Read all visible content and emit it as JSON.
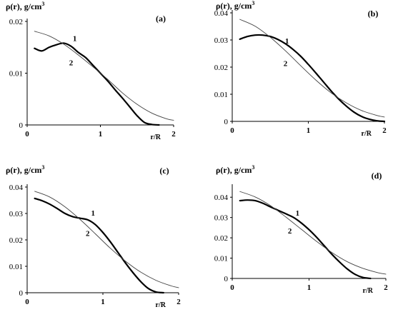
{
  "chart_data": [
    {
      "type": "line",
      "panel_label": "(a)",
      "ylabel": "ρ(r), g/cm",
      "ylabel_sup": "3",
      "xlabel": "r/R",
      "xlim": [
        0,
        2
      ],
      "ylim": [
        0,
        0.02
      ],
      "xticks": [
        0,
        1,
        2
      ],
      "yticks": [
        0,
        0.01,
        0.02
      ],
      "ytick_labels": [
        "0",
        "0.01",
        "0.02"
      ],
      "series": [
        {
          "name": "1",
          "style": "thick",
          "x": [
            0.1,
            0.2,
            0.3,
            0.4,
            0.5,
            0.6,
            0.7,
            0.8,
            0.9,
            1.0,
            1.1,
            1.2,
            1.3,
            1.4,
            1.5,
            1.6,
            1.7,
            1.8
          ],
          "y": [
            0.0148,
            0.0143,
            0.015,
            0.0155,
            0.0158,
            0.0152,
            0.014,
            0.013,
            0.0115,
            0.01,
            0.0085,
            0.0068,
            0.0052,
            0.0035,
            0.0018,
            0.0005,
            0.0001,
            0.0
          ]
        },
        {
          "name": "2",
          "style": "thin",
          "x": [
            0.1,
            0.3,
            0.5,
            0.7,
            0.9,
            1.1,
            1.3,
            1.5,
            1.7,
            1.9,
            2.0
          ],
          "y": [
            0.0181,
            0.0172,
            0.0156,
            0.0135,
            0.0112,
            0.0088,
            0.0062,
            0.004,
            0.0023,
            0.0012,
            0.0009
          ]
        }
      ],
      "curve_labels": [
        {
          "text": "1",
          "x": 0.65,
          "y": 0.0162
        },
        {
          "text": "2",
          "x": 0.6,
          "y": 0.0115
        }
      ]
    },
    {
      "type": "line",
      "panel_label": "(b)",
      "ylabel": "ρ(r), g/cm",
      "ylabel_sup": "3",
      "xlabel": "r/R",
      "xlim": [
        0,
        2
      ],
      "ylim": [
        0,
        0.04
      ],
      "xticks": [
        0,
        1,
        2
      ],
      "yticks": [
        0,
        0.01,
        0.02,
        0.03,
        0.04
      ],
      "ytick_labels": [
        "0",
        "0.01",
        "0.02",
        "0.03",
        "0.04"
      ],
      "series": [
        {
          "name": "1",
          "style": "thick",
          "x": [
            0.1,
            0.2,
            0.3,
            0.4,
            0.5,
            0.6,
            0.7,
            0.8,
            0.9,
            1.0,
            1.1,
            1.2,
            1.3,
            1.4,
            1.5,
            1.6,
            1.7,
            1.8,
            1.9,
            2.0
          ],
          "y": [
            0.0303,
            0.0313,
            0.0318,
            0.0318,
            0.0313,
            0.0302,
            0.0286,
            0.0265,
            0.024,
            0.021,
            0.0178,
            0.0145,
            0.0112,
            0.0082,
            0.0056,
            0.0034,
            0.0018,
            0.0008,
            0.0002,
            0.0
          ]
        },
        {
          "name": "2",
          "style": "thin",
          "x": [
            0.1,
            0.3,
            0.5,
            0.7,
            0.9,
            1.1,
            1.3,
            1.5,
            1.7,
            1.9,
            2.0
          ],
          "y": [
            0.0376,
            0.0351,
            0.031,
            0.026,
            0.0205,
            0.0152,
            0.0105,
            0.0068,
            0.004,
            0.0022,
            0.0016
          ]
        }
      ],
      "curve_labels": [
        {
          "text": "1",
          "x": 0.72,
          "y": 0.0287
        },
        {
          "text": "2",
          "x": 0.7,
          "y": 0.0204
        }
      ]
    },
    {
      "type": "line",
      "panel_label": "(c)",
      "ylabel": "ρ(r), g/cm",
      "ylabel_sup": "3",
      "xlabel": "r/R",
      "xlim": [
        0,
        2
      ],
      "ylim": [
        0,
        0.04
      ],
      "xticks": [
        0,
        1,
        2
      ],
      "yticks": [
        0,
        0.01,
        0.02,
        0.03,
        0.04
      ],
      "ytick_labels": [
        "0",
        "0.01",
        "0.02",
        "0.03",
        "0.04"
      ],
      "series": [
        {
          "name": "1",
          "style": "thick",
          "x": [
            0.1,
            0.2,
            0.3,
            0.4,
            0.5,
            0.6,
            0.7,
            0.8,
            0.9,
            1.0,
            1.1,
            1.2,
            1.3,
            1.4,
            1.5,
            1.6,
            1.7,
            1.8
          ],
          "y": [
            0.0357,
            0.0348,
            0.0335,
            0.0318,
            0.03,
            0.0288,
            0.0282,
            0.0276,
            0.0258,
            0.0228,
            0.0192,
            0.0152,
            0.0112,
            0.0075,
            0.0042,
            0.0016,
            0.0003,
            0.0
          ]
        },
        {
          "name": "2",
          "style": "thin",
          "x": [
            0.1,
            0.3,
            0.5,
            0.7,
            0.9,
            1.1,
            1.3,
            1.5,
            1.7,
            1.9,
            2.0
          ],
          "y": [
            0.0384,
            0.0362,
            0.0325,
            0.0277,
            0.0223,
            0.0168,
            0.0119,
            0.0078,
            0.0047,
            0.0026,
            0.0019
          ]
        }
      ],
      "curve_labels": [
        {
          "text": "1",
          "x": 0.87,
          "y": 0.0292
        },
        {
          "text": "2",
          "x": 0.8,
          "y": 0.0215
        }
      ]
    },
    {
      "type": "line",
      "panel_label": "(d)",
      "ylabel": "ρ(r), g/cm",
      "ylabel_sup": "3",
      "xlabel": "r/R",
      "xlim": [
        0,
        2
      ],
      "ylim": [
        0,
        0.045
      ],
      "xticks": [
        0,
        1,
        2
      ],
      "yticks": [
        0,
        0.01,
        0.02,
        0.03,
        0.04
      ],
      "ytick_labels": [
        "0",
        "0.01",
        "0.02",
        "0.03",
        "0.04"
      ],
      "series": [
        {
          "name": "1",
          "style": "thick",
          "x": [
            0.1,
            0.2,
            0.3,
            0.4,
            0.5,
            0.6,
            0.7,
            0.8,
            0.9,
            1.0,
            1.1,
            1.2,
            1.3,
            1.4,
            1.5,
            1.6,
            1.7,
            1.8
          ],
          "y": [
            0.0383,
            0.0386,
            0.0383,
            0.037,
            0.0352,
            0.0335,
            0.0318,
            0.03,
            0.0273,
            0.024,
            0.0202,
            0.016,
            0.0118,
            0.008,
            0.0046,
            0.002,
            0.0005,
            0.0
          ]
        },
        {
          "name": "2",
          "style": "thin",
          "x": [
            0.1,
            0.3,
            0.5,
            0.7,
            0.9,
            1.1,
            1.3,
            1.5,
            1.7,
            1.9,
            2.0
          ],
          "y": [
            0.0428,
            0.0401,
            0.0358,
            0.0302,
            0.0242,
            0.0182,
            0.0127,
            0.0082,
            0.005,
            0.0028,
            0.0021
          ]
        }
      ],
      "curve_labels": [
        {
          "text": "1",
          "x": 0.85,
          "y": 0.031
        },
        {
          "text": "2",
          "x": 0.75,
          "y": 0.0222
        }
      ]
    }
  ]
}
